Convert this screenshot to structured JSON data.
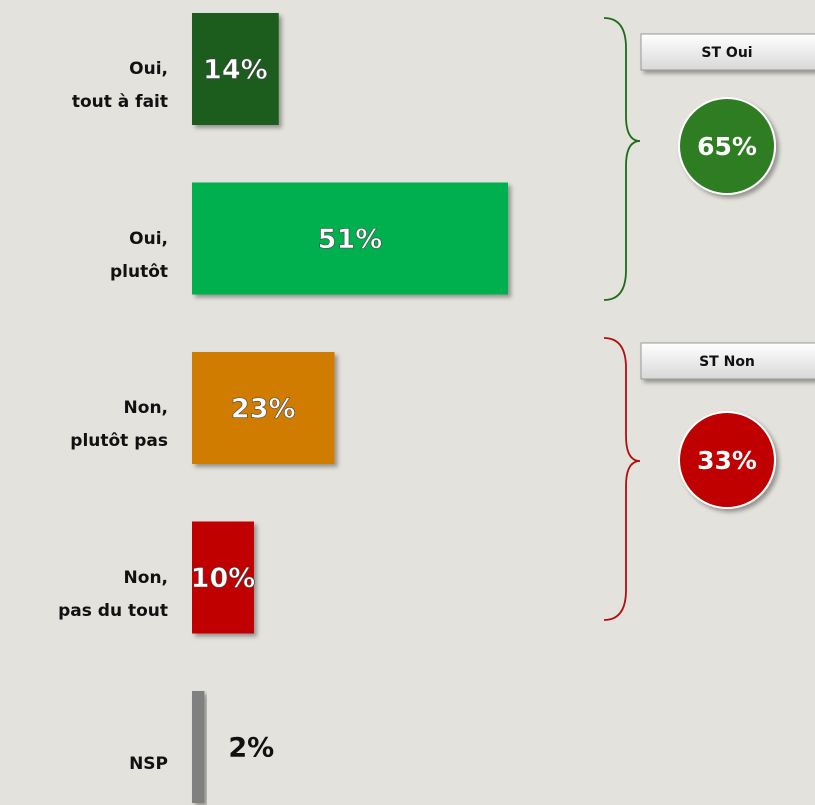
{
  "chart_data": {
    "type": "bar",
    "orientation": "horizontal",
    "categories": [
      "Oui,\ntout à fait",
      "Oui,\nplutôt",
      "Non,\nplutôt pas",
      "Non,\npas du tout",
      "NSP"
    ],
    "values": [
      14,
      51,
      23,
      10,
      2
    ],
    "value_labels": [
      "14%",
      "51%",
      "23%",
      "10%",
      "2%"
    ],
    "colors": [
      "#1e5c1a",
      "#00b050",
      "#d07c04",
      "#c00000",
      "#808080"
    ],
    "groups": [
      {
        "label": "ST Oui",
        "value": 65,
        "value_label": "65%",
        "color": "#2e7d24",
        "brace_color": "#1e6b1a"
      },
      {
        "label": "ST Non",
        "value": 33,
        "value_label": "33%",
        "color": "#c00000",
        "brace_color": "#b01010"
      }
    ]
  }
}
